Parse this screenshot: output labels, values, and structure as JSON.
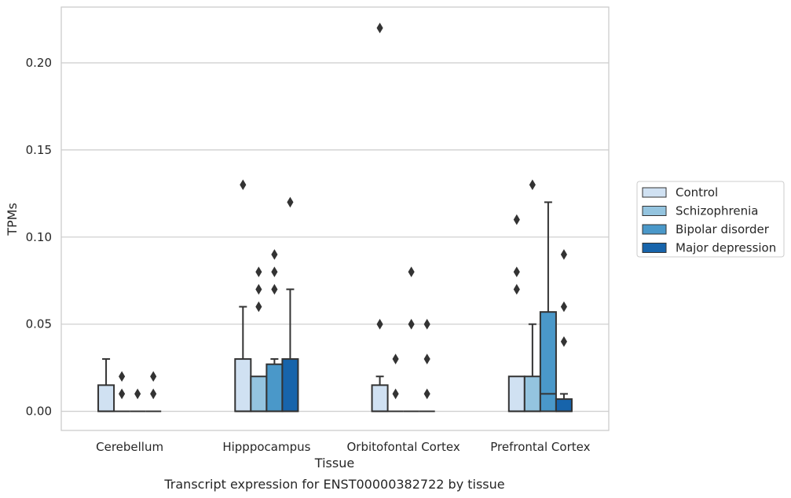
{
  "chart_data": {
    "type": "boxplot",
    "title": "",
    "caption": "Transcript expression for ENST00000382722 by tissue",
    "xlabel": "Tissue",
    "ylabel": "TPMs",
    "ylim": [
      -0.011,
      0.232
    ],
    "yticks": [
      0.0,
      0.05,
      0.1,
      0.15,
      0.2
    ],
    "ytick_labels": [
      "0.00",
      "0.05",
      "0.10",
      "0.15",
      "0.20"
    ],
    "grid": "horizontal",
    "legend_position": "right",
    "categories": [
      "Cerebellum",
      "Hipppocampus",
      "Orbitofontal Cortex",
      "Prefrontal Cortex"
    ],
    "series": [
      {
        "name": "Control",
        "color": "#d0e1f2",
        "boxes": [
          {
            "q1": 0.0,
            "median": 0.0,
            "q3": 0.015,
            "whisker_low": 0.0,
            "whisker_high": 0.03,
            "outliers": []
          },
          {
            "q1": 0.0,
            "median": 0.0,
            "q3": 0.03,
            "whisker_low": 0.0,
            "whisker_high": 0.06,
            "outliers": [
              0.13
            ]
          },
          {
            "q1": 0.0,
            "median": 0.0,
            "q3": 0.015,
            "whisker_low": 0.0,
            "whisker_high": 0.02,
            "outliers": [
              0.05,
              0.22
            ]
          },
          {
            "q1": 0.0,
            "median": 0.0,
            "q3": 0.02,
            "whisker_low": 0.0,
            "whisker_high": 0.02,
            "outliers": [
              0.07,
              0.08,
              0.11
            ]
          }
        ]
      },
      {
        "name": "Schizophrenia",
        "color": "#94c4df",
        "boxes": [
          {
            "q1": 0.0,
            "median": 0.0,
            "q3": 0.0,
            "whisker_low": 0.0,
            "whisker_high": 0.0,
            "outliers": [
              0.01,
              0.02
            ]
          },
          {
            "q1": 0.0,
            "median": 0.0,
            "q3": 0.02,
            "whisker_low": 0.0,
            "whisker_high": 0.02,
            "outliers": [
              0.06,
              0.07,
              0.08
            ]
          },
          {
            "q1": 0.0,
            "median": 0.0,
            "q3": 0.0,
            "whisker_low": 0.0,
            "whisker_high": 0.0,
            "outliers": [
              0.01,
              0.03
            ]
          },
          {
            "q1": 0.0,
            "median": 0.0,
            "q3": 0.02,
            "whisker_low": 0.0,
            "whisker_high": 0.05,
            "outliers": [
              0.13
            ]
          }
        ]
      },
      {
        "name": "Bipolar disorder",
        "color": "#4a98c9",
        "boxes": [
          {
            "q1": 0.0,
            "median": 0.0,
            "q3": 0.0,
            "whisker_low": 0.0,
            "whisker_high": 0.0,
            "outliers": [
              0.01
            ]
          },
          {
            "q1": 0.0,
            "median": 0.0,
            "q3": 0.027,
            "whisker_low": 0.0,
            "whisker_high": 0.03,
            "outliers": [
              0.07,
              0.08,
              0.09
            ]
          },
          {
            "q1": 0.0,
            "median": 0.0,
            "q3": 0.0,
            "whisker_low": 0.0,
            "whisker_high": 0.0,
            "outliers": [
              0.05,
              0.08
            ]
          },
          {
            "q1": 0.0,
            "median": 0.01,
            "q3": 0.057,
            "whisker_low": 0.0,
            "whisker_high": 0.12,
            "outliers": []
          }
        ]
      },
      {
        "name": "Major depression",
        "color": "#1764ab",
        "boxes": [
          {
            "q1": 0.0,
            "median": 0.0,
            "q3": 0.0,
            "whisker_low": 0.0,
            "whisker_high": 0.0,
            "outliers": [
              0.01,
              0.02
            ]
          },
          {
            "q1": 0.0,
            "median": 0.0,
            "q3": 0.03,
            "whisker_low": 0.0,
            "whisker_high": 0.07,
            "outliers": [
              0.12
            ]
          },
          {
            "q1": 0.0,
            "median": 0.0,
            "q3": 0.0,
            "whisker_low": 0.0,
            "whisker_high": 0.0,
            "outliers": [
              0.01,
              0.03,
              0.05
            ]
          },
          {
            "q1": 0.0,
            "median": 0.0,
            "q3": 0.007,
            "whisker_low": 0.0,
            "whisker_high": 0.01,
            "outliers": [
              0.04,
              0.06,
              0.09
            ]
          }
        ]
      }
    ]
  }
}
